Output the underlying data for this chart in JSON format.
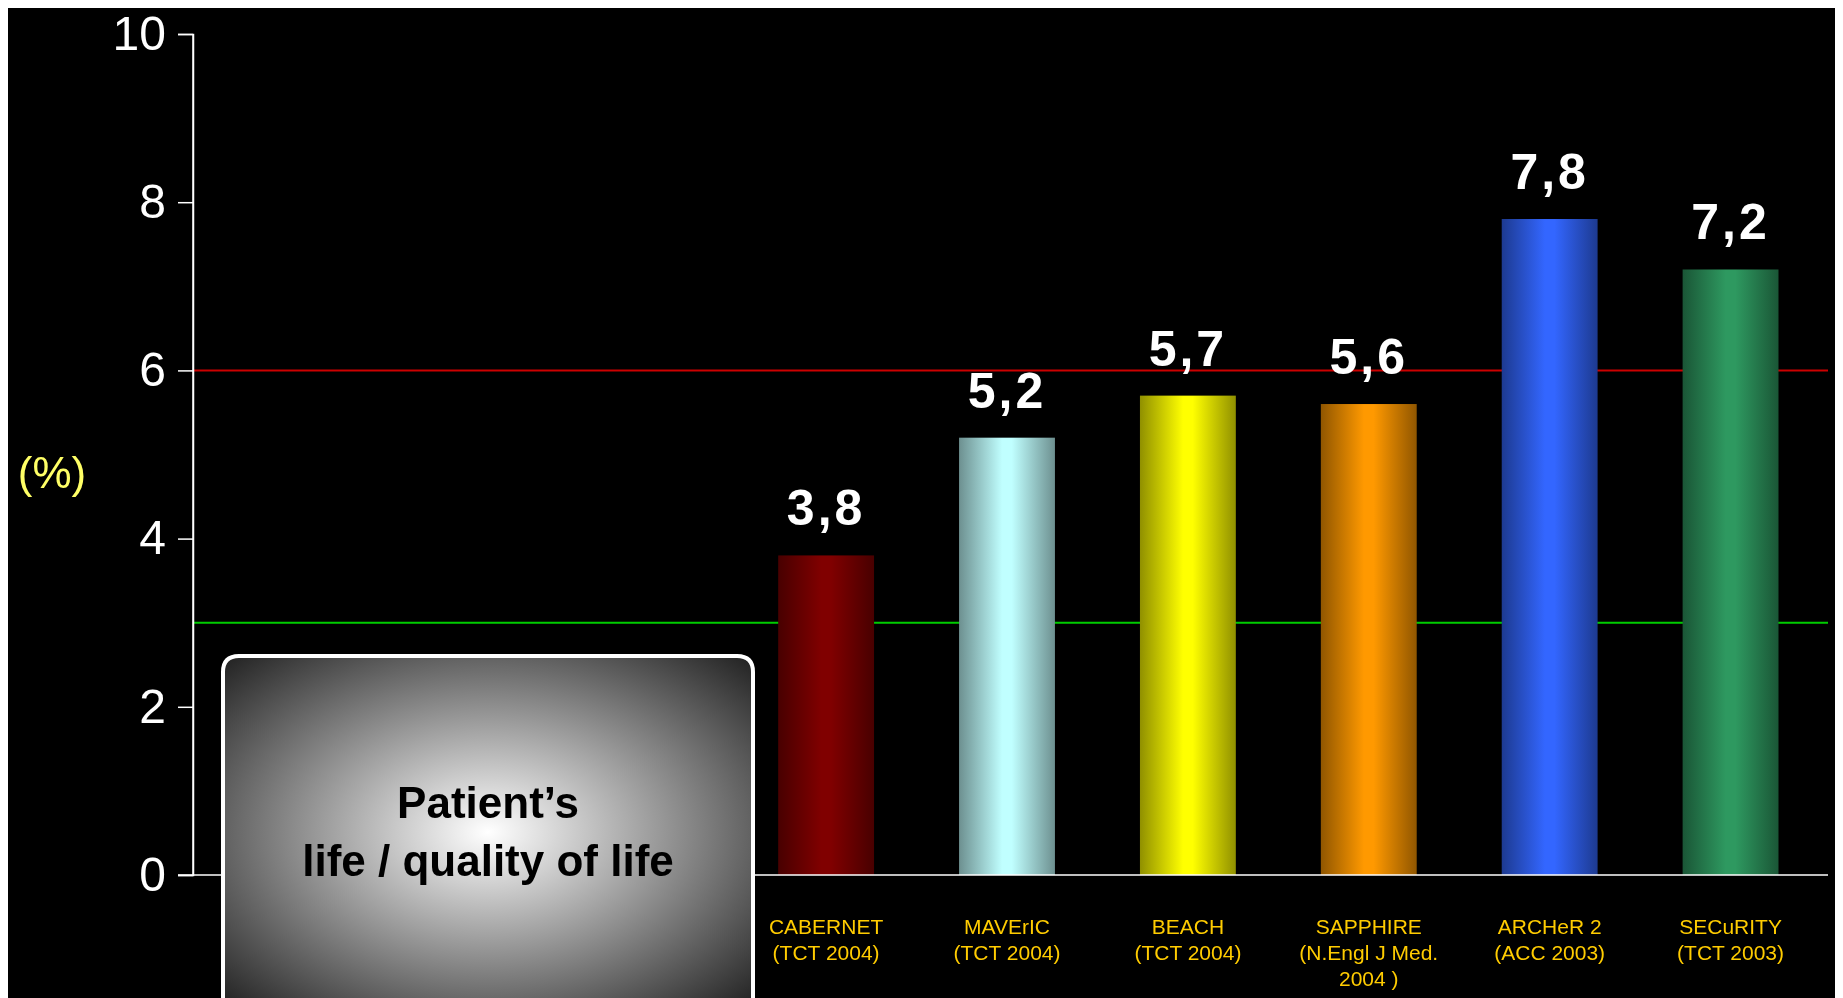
{
  "chart_data": {
    "type": "bar",
    "categories": [
      null,
      null,
      null,
      "CABERNET\n(TCT 2004)",
      "MAVErIC\n(TCT 2004)",
      "BEACH\n(TCT 2004)",
      "SAPPHIRE\n(N.Engl J Med.\n2004 )",
      "ARCHeR 2\n(ACC 2003)",
      "SECuRITY\n(TCT 2003)"
    ],
    "values": [
      null,
      null,
      null,
      3.8,
      5.2,
      5.7,
      5.6,
      7.8,
      7.2
    ],
    "colors": [
      null,
      null,
      null,
      "#800000",
      "#c0ffff",
      "#ffff00",
      "#ff9900",
      "#3366ff",
      "#2e9960"
    ],
    "value_labels": [
      null,
      null,
      null,
      "3,8",
      "5,2",
      "5,7",
      "5,6",
      "7,8",
      "7,2"
    ],
    "ylabel": "(%)",
    "ylim": [
      0,
      10
    ],
    "yticks": [
      0,
      2,
      4,
      6,
      8,
      10
    ],
    "ref_lines": [
      {
        "axis": "y",
        "value": 6,
        "color": "#cc0000"
      },
      {
        "axis": "y",
        "value": 3,
        "color": "#00cc00"
      }
    ],
    "annotations": [
      "Patient’s\nlife / quality of life"
    ],
    "grid": false
  }
}
